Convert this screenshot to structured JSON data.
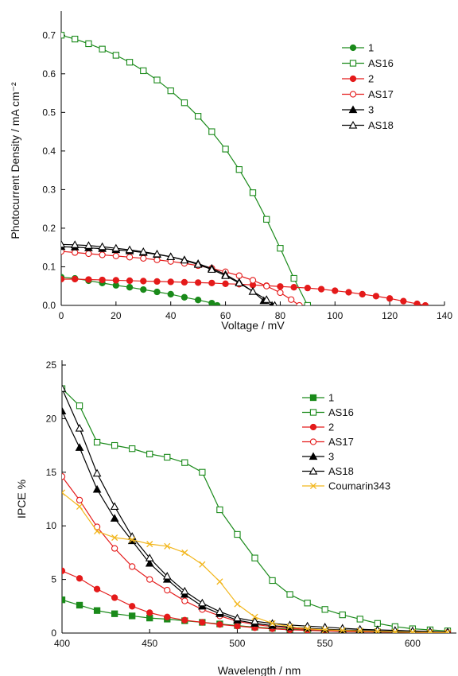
{
  "chart_data": [
    {
      "type": "line",
      "xlabel": "Voltage / mV",
      "ylabel": "Photocurrent Density / mA cm⁻²",
      "xlim": [
        0,
        140
      ],
      "ylim": [
        0,
        0.75
      ],
      "xticks": [
        0,
        20,
        40,
        60,
        80,
        100,
        120,
        140
      ],
      "yticks": [
        0.0,
        0.1,
        0.2,
        0.3,
        0.4,
        0.5,
        0.6,
        0.7
      ],
      "ytick_labels": [
        "0.0",
        "0.1",
        "0.2",
        "0.3",
        "0.4",
        "0.5",
        "0.6",
        "0.7"
      ],
      "grid": false,
      "legend_position": "top-right",
      "series": [
        {
          "name": "1",
          "color": "#1a8a1a",
          "marker": "circle-filled",
          "x": [
            0,
            5,
            10,
            15,
            20,
            25,
            30,
            35,
            40,
            45,
            50,
            55,
            57
          ],
          "y": [
            0.073,
            0.07,
            0.064,
            0.058,
            0.052,
            0.047,
            0.041,
            0.035,
            0.029,
            0.021,
            0.014,
            0.006,
            0.0
          ]
        },
        {
          "name": "AS16",
          "color": "#1a8a1a",
          "marker": "square-open",
          "x": [
            0,
            5,
            10,
            15,
            20,
            25,
            30,
            35,
            40,
            45,
            50,
            55,
            60,
            65,
            70,
            75,
            80,
            85,
            90,
            94
          ],
          "y": [
            0.7,
            0.69,
            0.678,
            0.664,
            0.648,
            0.63,
            0.608,
            0.584,
            0.556,
            0.525,
            0.49,
            0.45,
            0.405,
            0.352,
            0.292,
            0.223,
            0.148,
            0.07,
            0.0,
            -0.05
          ]
        },
        {
          "name": "2",
          "color": "#e41a1a",
          "marker": "circle-filled",
          "x": [
            0,
            5,
            10,
            15,
            20,
            25,
            30,
            35,
            40,
            45,
            50,
            55,
            60,
            65,
            70,
            75,
            80,
            85,
            90,
            95,
            100,
            105,
            110,
            115,
            120,
            125,
            130,
            133
          ],
          "y": [
            0.068,
            0.068,
            0.067,
            0.066,
            0.065,
            0.064,
            0.063,
            0.062,
            0.061,
            0.06,
            0.059,
            0.058,
            0.056,
            0.055,
            0.053,
            0.051,
            0.049,
            0.047,
            0.045,
            0.042,
            0.038,
            0.034,
            0.029,
            0.024,
            0.018,
            0.011,
            0.004,
            0.0
          ]
        },
        {
          "name": "AS17",
          "color": "#e41a1a",
          "marker": "circle-open",
          "x": [
            0,
            5,
            10,
            15,
            20,
            25,
            30,
            35,
            40,
            45,
            50,
            55,
            60,
            65,
            70,
            75,
            80,
            84,
            87
          ],
          "y": [
            0.14,
            0.137,
            0.134,
            0.131,
            0.128,
            0.125,
            0.122,
            0.118,
            0.114,
            0.109,
            0.103,
            0.096,
            0.087,
            0.077,
            0.065,
            0.05,
            0.033,
            0.015,
            0.0
          ]
        },
        {
          "name": "3",
          "color": "#000000",
          "marker": "triangle-filled",
          "x": [
            0,
            5,
            10,
            15,
            20,
            25,
            30,
            35,
            40,
            45,
            50,
            55,
            60,
            65,
            70,
            74,
            77
          ],
          "y": [
            0.152,
            0.151,
            0.149,
            0.147,
            0.144,
            0.141,
            0.137,
            0.132,
            0.126,
            0.118,
            0.108,
            0.096,
            0.08,
            0.06,
            0.036,
            0.012,
            0.0
          ]
        },
        {
          "name": "AS18",
          "color": "#000000",
          "marker": "triangle-open",
          "x": [
            0,
            5,
            10,
            15,
            20,
            25,
            30,
            35,
            40,
            45,
            50,
            55,
            60,
            65,
            70,
            75,
            78
          ],
          "y": [
            0.158,
            0.157,
            0.155,
            0.152,
            0.148,
            0.144,
            0.139,
            0.133,
            0.126,
            0.117,
            0.106,
            0.093,
            0.077,
            0.058,
            0.036,
            0.015,
            0.0
          ]
        }
      ]
    },
    {
      "type": "line",
      "xlabel": "Wavelength / nm",
      "ylabel": "IPCE %",
      "xlim": [
        400,
        625
      ],
      "ylim": [
        0,
        25
      ],
      "xticks": [
        400,
        450,
        500,
        550,
        600
      ],
      "yticks": [
        0,
        5,
        10,
        15,
        20,
        25
      ],
      "grid": false,
      "legend_position": "top-right",
      "series": [
        {
          "name": "1",
          "color": "#1a8a1a",
          "marker": "square-filled",
          "x": [
            400,
            410,
            420,
            430,
            440,
            450,
            460,
            470,
            480,
            490,
            500,
            510,
            520,
            530,
            540,
            550,
            560,
            570,
            580,
            590,
            600,
            610,
            620
          ],
          "y": [
            3.1,
            2.6,
            2.1,
            1.8,
            1.6,
            1.4,
            1.3,
            1.15,
            1.0,
            0.85,
            0.7,
            0.55,
            0.45,
            0.35,
            0.3,
            0.25,
            0.2,
            0.15,
            0.12,
            0.1,
            0.08,
            0.06,
            0.05
          ]
        },
        {
          "name": "AS16",
          "color": "#1a8a1a",
          "marker": "square-open",
          "x": [
            400,
            410,
            420,
            430,
            440,
            450,
            460,
            470,
            480,
            490,
            500,
            510,
            520,
            530,
            540,
            550,
            560,
            570,
            580,
            590,
            600,
            610,
            620
          ],
          "y": [
            22.8,
            21.2,
            17.8,
            17.5,
            17.2,
            16.7,
            16.4,
            15.9,
            15.0,
            11.5,
            9.2,
            7.0,
            4.9,
            3.6,
            2.8,
            2.2,
            1.7,
            1.3,
            0.9,
            0.6,
            0.4,
            0.3,
            0.2
          ]
        },
        {
          "name": "2",
          "color": "#e41a1a",
          "marker": "circle-filled",
          "x": [
            400,
            410,
            420,
            430,
            440,
            450,
            460,
            470,
            480,
            490,
            500,
            510,
            520,
            530,
            540,
            550,
            560,
            570,
            580,
            590,
            600,
            610,
            620
          ],
          "y": [
            5.8,
            5.1,
            4.1,
            3.3,
            2.5,
            1.9,
            1.5,
            1.2,
            1.0,
            0.8,
            0.65,
            0.5,
            0.4,
            0.3,
            0.25,
            0.2,
            0.15,
            0.12,
            0.1,
            0.08,
            0.06,
            0.05,
            0.04
          ]
        },
        {
          "name": "AS17",
          "color": "#e41a1a",
          "marker": "circle-open",
          "x": [
            400,
            410,
            420,
            430,
            440,
            450,
            460,
            470,
            480,
            490,
            500,
            510,
            520,
            530,
            540,
            550,
            560,
            570,
            580,
            590,
            600,
            610,
            620
          ],
          "y": [
            14.6,
            12.4,
            9.9,
            7.9,
            6.2,
            5.0,
            4.0,
            3.0,
            2.2,
            1.6,
            1.1,
            0.8,
            0.6,
            0.45,
            0.35,
            0.3,
            0.25,
            0.2,
            0.15,
            0.1,
            0.08,
            0.06,
            0.05
          ]
        },
        {
          "name": "3",
          "color": "#000000",
          "marker": "triangle-filled",
          "x": [
            400,
            410,
            420,
            430,
            440,
            450,
            460,
            470,
            480,
            490,
            500,
            510,
            520,
            530,
            540,
            550,
            560,
            570,
            580,
            590,
            600,
            610,
            620
          ],
          "y": [
            20.7,
            17.3,
            13.4,
            10.7,
            8.6,
            6.5,
            5.0,
            3.6,
            2.5,
            1.8,
            1.2,
            0.9,
            0.7,
            0.55,
            0.45,
            0.35,
            0.3,
            0.25,
            0.2,
            0.15,
            0.1,
            0.08,
            0.06
          ]
        },
        {
          "name": "AS18",
          "color": "#000000",
          "marker": "triangle-open",
          "x": [
            400,
            410,
            420,
            430,
            440,
            450,
            460,
            470,
            480,
            490,
            500,
            510,
            520,
            530,
            540,
            550,
            560,
            570,
            580,
            590,
            600,
            610,
            620
          ],
          "y": [
            22.8,
            19.1,
            14.9,
            11.8,
            9.0,
            7.0,
            5.3,
            3.9,
            2.8,
            2.0,
            1.4,
            1.1,
            0.9,
            0.75,
            0.65,
            0.55,
            0.45,
            0.35,
            0.3,
            0.25,
            0.2,
            0.15,
            0.1
          ]
        },
        {
          "name": "Coumarin343",
          "color": "#f2b61c",
          "marker": "x",
          "x": [
            400,
            410,
            420,
            430,
            440,
            450,
            460,
            470,
            480,
            490,
            500,
            510,
            520,
            530,
            540,
            550,
            560,
            570,
            580,
            590,
            600,
            610,
            620
          ],
          "y": [
            13.1,
            11.8,
            9.5,
            8.9,
            8.7,
            8.3,
            8.1,
            7.5,
            6.4,
            4.8,
            2.7,
            1.5,
            0.9,
            0.6,
            0.4,
            0.3,
            0.25,
            0.2,
            0.15,
            0.1,
            0.08,
            0.06,
            0.05
          ]
        }
      ]
    }
  ]
}
